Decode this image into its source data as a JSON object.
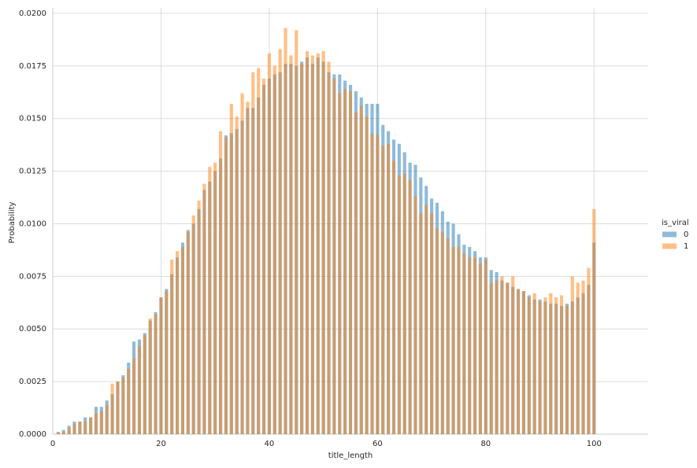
{
  "chart_data": {
    "type": "histogram",
    "x_label": "title_length",
    "y_label": "Probability",
    "legend_title": "is_viral",
    "x": [
      1,
      2,
      3,
      4,
      5,
      6,
      7,
      8,
      9,
      10,
      11,
      12,
      13,
      14,
      15,
      16,
      17,
      18,
      19,
      20,
      21,
      22,
      23,
      24,
      25,
      26,
      27,
      28,
      29,
      30,
      31,
      32,
      33,
      34,
      35,
      36,
      37,
      38,
      39,
      40,
      41,
      42,
      43,
      44,
      45,
      46,
      47,
      48,
      49,
      50,
      51,
      52,
      53,
      54,
      55,
      56,
      57,
      58,
      59,
      60,
      61,
      62,
      63,
      64,
      65,
      66,
      67,
      68,
      69,
      70,
      71,
      72,
      73,
      74,
      75,
      76,
      77,
      78,
      79,
      80,
      81,
      82,
      83,
      84,
      85,
      86,
      87,
      88,
      89,
      90,
      91,
      92,
      93,
      94,
      95,
      96,
      97,
      98,
      99,
      100
    ],
    "series": [
      {
        "name": "0",
        "color": "#1f77b4",
        "values": [
          0.0001,
          0.0002,
          0.0004,
          0.0006,
          0.0006,
          0.0008,
          0.0008,
          0.0013,
          0.0013,
          0.0016,
          0.0019,
          0.0025,
          0.0028,
          0.0034,
          0.0044,
          0.0045,
          0.0048,
          0.0054,
          0.0058,
          0.0065,
          0.0069,
          0.0076,
          0.0084,
          0.0091,
          0.0097,
          0.01,
          0.0107,
          0.0116,
          0.012,
          0.0125,
          0.0131,
          0.0142,
          0.0143,
          0.0145,
          0.0149,
          0.0155,
          0.0155,
          0.016,
          0.0166,
          0.0169,
          0.0171,
          0.0172,
          0.0176,
          0.0176,
          0.0175,
          0.0177,
          0.0179,
          0.0176,
          0.0179,
          0.0177,
          0.0172,
          0.0171,
          0.0171,
          0.0168,
          0.0166,
          0.0163,
          0.016,
          0.0157,
          0.0157,
          0.0157,
          0.0147,
          0.0144,
          0.014,
          0.0138,
          0.0134,
          0.0129,
          0.0128,
          0.0122,
          0.0118,
          0.0112,
          0.011,
          0.0106,
          0.0101,
          0.01,
          0.0095,
          0.009,
          0.0089,
          0.0087,
          0.0084,
          0.0084,
          0.0078,
          0.0077,
          0.0073,
          0.0072,
          0.007,
          0.0069,
          0.0068,
          0.0066,
          0.0064,
          0.0064,
          0.0063,
          0.0062,
          0.0062,
          0.0061,
          0.0062,
          0.0063,
          0.0065,
          0.0067,
          0.0071,
          0.0091
        ]
      },
      {
        "name": "1",
        "color": "#ff7f0e",
        "values": [
          0.0001,
          0.0001,
          0.0003,
          0.0005,
          0.0006,
          0.0006,
          0.0008,
          0.001,
          0.0011,
          0.0014,
          0.0024,
          0.0025,
          0.0027,
          0.0031,
          0.0036,
          0.0042,
          0.0047,
          0.0055,
          0.0057,
          0.0065,
          0.0068,
          0.0083,
          0.0087,
          0.0089,
          0.0096,
          0.0104,
          0.0111,
          0.0119,
          0.0127,
          0.0129,
          0.0144,
          0.0141,
          0.0157,
          0.0151,
          0.0162,
          0.0158,
          0.0172,
          0.0174,
          0.0169,
          0.0181,
          0.0175,
          0.0183,
          0.0193,
          0.018,
          0.0192,
          0.0176,
          0.0182,
          0.018,
          0.0181,
          0.0182,
          0.0177,
          0.0169,
          0.0162,
          0.0164,
          0.0163,
          0.0153,
          0.0156,
          0.0151,
          0.0143,
          0.0142,
          0.0137,
          0.0138,
          0.013,
          0.0123,
          0.0124,
          0.0121,
          0.0113,
          0.0105,
          0.0109,
          0.0105,
          0.0098,
          0.0096,
          0.0093,
          0.0089,
          0.0089,
          0.0086,
          0.0084,
          0.0084,
          0.0081,
          0.0083,
          0.0072,
          0.0073,
          0.0075,
          0.0072,
          0.0075,
          0.0069,
          0.0068,
          0.0065,
          0.0067,
          0.0063,
          0.0065,
          0.0067,
          0.0065,
          0.0066,
          0.0061,
          0.0075,
          0.0072,
          0.0073,
          0.0079,
          0.0107
        ]
      }
    ],
    "xlim": [
      0,
      110
    ],
    "xticks": [
      0,
      20,
      40,
      60,
      80,
      100
    ],
    "ylim": [
      0,
      0.02026
    ],
    "yticks": [
      {
        "value": 0,
        "label": "0.0000"
      },
      0.0025,
      {
        "value": 0.005,
        "label": "0.0050"
      },
      0.0075,
      {
        "value": 0.01,
        "label": "0.0100"
      },
      0.0125,
      {
        "value": 0.015,
        "label": "0.0150"
      },
      0.0175,
      {
        "value": 0.02,
        "label": "0.0200"
      }
    ],
    "grid": true
  }
}
